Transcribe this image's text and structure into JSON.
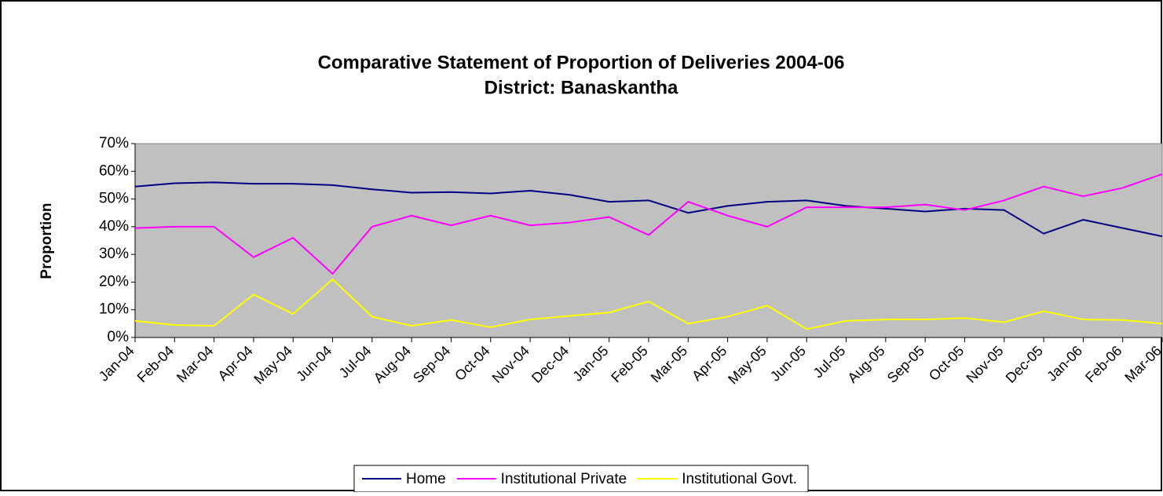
{
  "chart_data": {
    "type": "line",
    "title": "Comparative Statement of Proportion of Deliveries 2004-06",
    "subtitle": "District: Banaskantha",
    "y_label": "Proportion",
    "categories": [
      "Jan-04",
      "Feb-04",
      "Mar-04",
      "Apr-04",
      "May-04",
      "Jun-04",
      "Jul-04",
      "Aug-04",
      "Sep-04",
      "Oct-04",
      "Nov-04",
      "Dec-04",
      "Jan-05",
      "Feb-05",
      "Mar-05",
      "Apr-05",
      "May-05",
      "Jun-05",
      "Jul-05",
      "Aug-05",
      "Sep-05",
      "Oct-05",
      "Nov-05",
      "Dec-05",
      "Jan-06",
      "Feb-06",
      "Mar-06"
    ],
    "series": [
      {
        "name": "Home",
        "color": "#000080",
        "values": [
          54.5,
          55.7,
          56,
          55.5,
          55.5,
          55,
          53.5,
          52.3,
          52.5,
          52,
          53,
          51.5,
          49,
          49.5,
          45,
          47.5,
          49,
          49.5,
          47.5,
          46.5,
          45.5,
          46.5,
          46,
          37.5,
          42.5,
          39.5,
          36.5
        ]
      },
      {
        "name": "Institutional Private",
        "color": "#ff00ff",
        "values": [
          39.5,
          40,
          40,
          29,
          36,
          23,
          40,
          44,
          40.5,
          44,
          40.5,
          41.5,
          43.5,
          37,
          49,
          44,
          40,
          47,
          47,
          47,
          48,
          46,
          49.5,
          54.5,
          51,
          54,
          59
        ]
      },
      {
        "name": "Institutional Govt.",
        "color": "#ffff00",
        "values": [
          6,
          4.5,
          4.2,
          15.5,
          8.5,
          21,
          7.5,
          4.2,
          6.3,
          3.7,
          6.5,
          7.8,
          9,
          13,
          5,
          7.5,
          11.5,
          3,
          6,
          6.5,
          6.5,
          7,
          5.5,
          9.5,
          6.5,
          6.3,
          5
        ]
      }
    ],
    "ylim": [
      0,
      70
    ],
    "yticks": [
      {
        "value": 0,
        "label": "0%"
      },
      {
        "value": 10,
        "label": "10%"
      },
      {
        "value": 20,
        "label": "20%"
      },
      {
        "value": 30,
        "label": "30%"
      },
      {
        "value": 40,
        "label": "40%"
      },
      {
        "value": 50,
        "label": "50%"
      },
      {
        "value": 60,
        "label": "60%"
      },
      {
        "value": 70,
        "label": "70%"
      }
    ],
    "plot_background": "#c0c0c0",
    "legend": "bottom"
  }
}
